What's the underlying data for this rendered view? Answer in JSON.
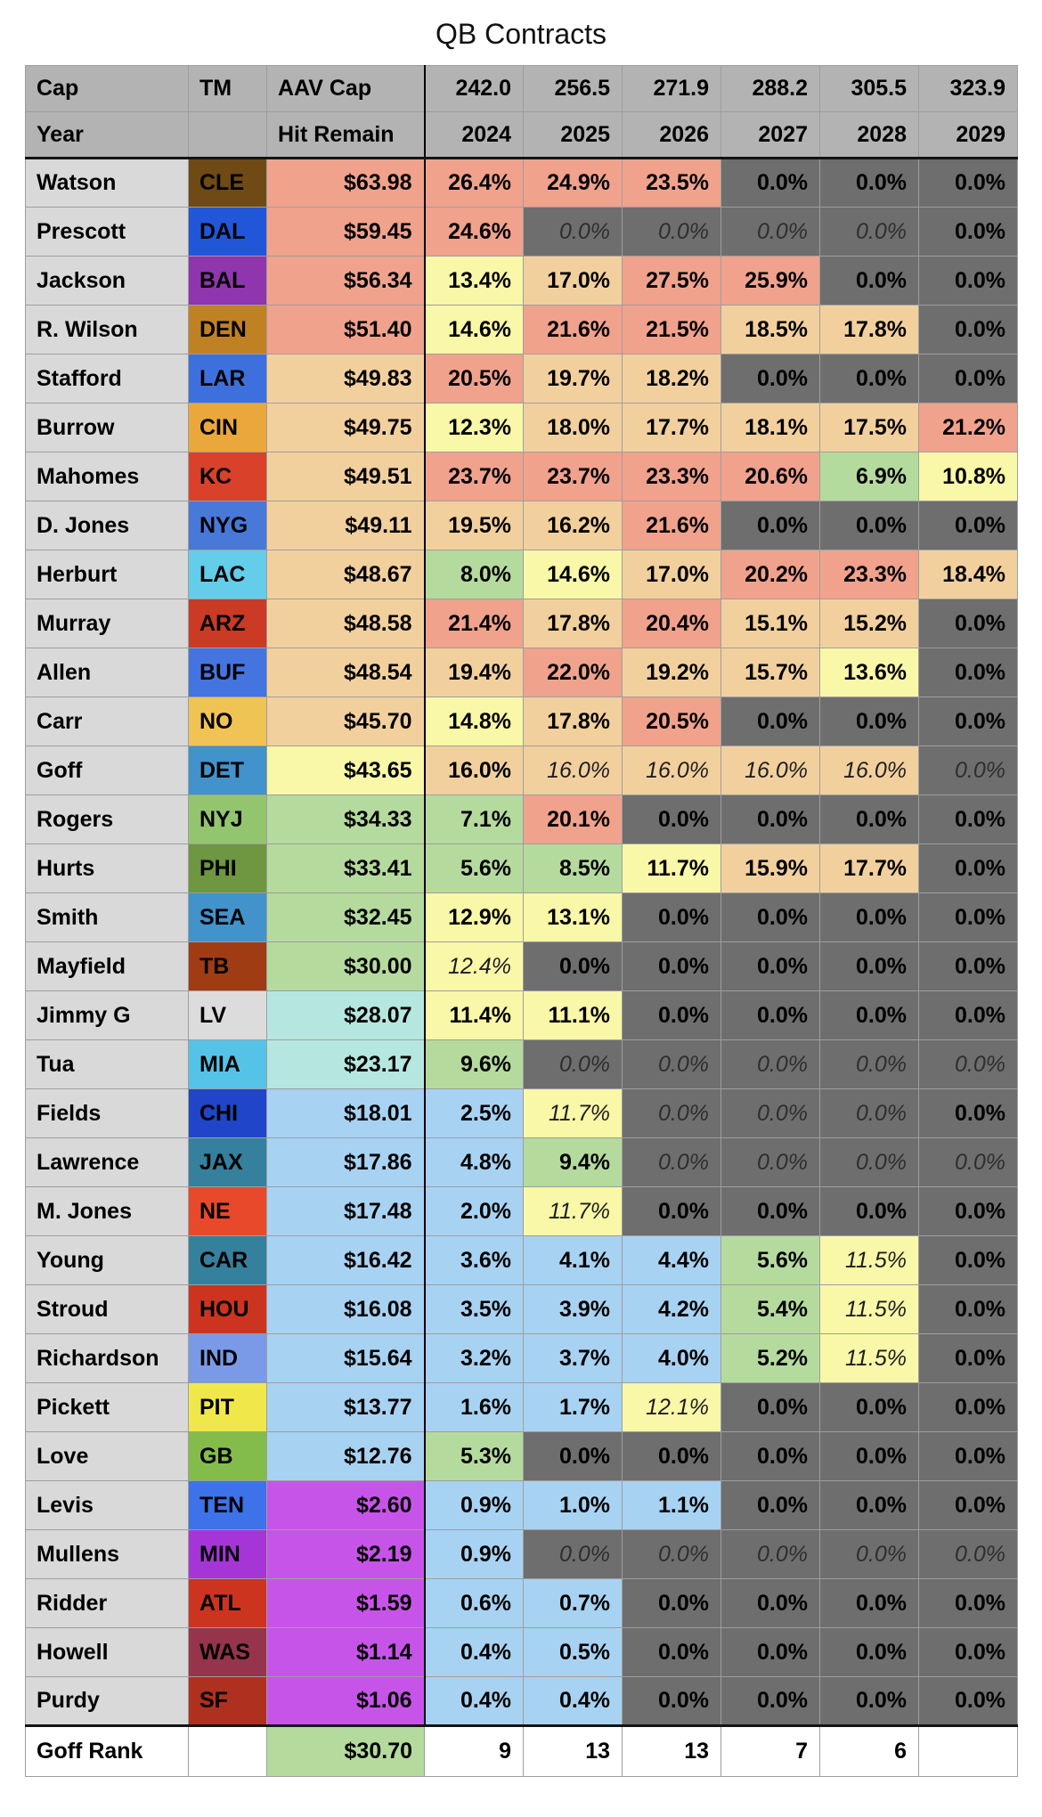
{
  "title": "QB Contracts",
  "chart_data": {
    "type": "table",
    "title": "QB Contracts",
    "header_rows": [
      [
        "Cap",
        "TM",
        "AAV Cap",
        "242.0",
        "256.5",
        "271.9",
        "288.2",
        "305.5",
        "323.9"
      ],
      [
        "Year",
        "",
        "Hit Remain",
        "2024",
        "2025",
        "2026",
        "2027",
        "2028",
        "2029"
      ]
    ],
    "years": [
      "2024",
      "2025",
      "2026",
      "2027",
      "2028",
      "2029"
    ],
    "rows": [
      {
        "name": "Watson",
        "team": "CLE",
        "aav": "$63.98",
        "aav_bg": "S",
        "pcts": [
          [
            "26.4%",
            "S"
          ],
          [
            "24.9%",
            "S"
          ],
          [
            "23.5%",
            "S"
          ],
          [
            "0.0%",
            "D"
          ],
          [
            "0.0%",
            "D"
          ],
          [
            "0.0%",
            "D"
          ]
        ]
      },
      {
        "name": "Prescott",
        "team": "DAL",
        "aav": "$59.45",
        "aav_bg": "S",
        "pcts": [
          [
            "24.6%",
            "S"
          ],
          [
            "0.0%",
            "D",
            "i"
          ],
          [
            "0.0%",
            "D",
            "i"
          ],
          [
            "0.0%",
            "D",
            "i"
          ],
          [
            "0.0%",
            "D",
            "i"
          ],
          [
            "0.0%",
            "D"
          ]
        ]
      },
      {
        "name": "Jackson",
        "team": "BAL",
        "aav": "$56.34",
        "aav_bg": "S",
        "pcts": [
          [
            "13.4%",
            "Y"
          ],
          [
            "17.0%",
            "T"
          ],
          [
            "27.5%",
            "S"
          ],
          [
            "25.9%",
            "S"
          ],
          [
            "0.0%",
            "D"
          ],
          [
            "0.0%",
            "D"
          ]
        ]
      },
      {
        "name": "R. Wilson",
        "team": "DEN",
        "aav": "$51.40",
        "aav_bg": "S",
        "pcts": [
          [
            "14.6%",
            "Y"
          ],
          [
            "21.6%",
            "S"
          ],
          [
            "21.5%",
            "S"
          ],
          [
            "18.5%",
            "T"
          ],
          [
            "17.8%",
            "T"
          ],
          [
            "0.0%",
            "D"
          ]
        ]
      },
      {
        "name": "Stafford",
        "team": "LAR",
        "aav": "$49.83",
        "aav_bg": "T",
        "pcts": [
          [
            "20.5%",
            "S"
          ],
          [
            "19.7%",
            "T"
          ],
          [
            "18.2%",
            "T"
          ],
          [
            "0.0%",
            "D"
          ],
          [
            "0.0%",
            "D"
          ],
          [
            "0.0%",
            "D"
          ]
        ]
      },
      {
        "name": "Burrow",
        "team": "CIN",
        "aav": "$49.75",
        "aav_bg": "T",
        "pcts": [
          [
            "12.3%",
            "Y"
          ],
          [
            "18.0%",
            "T"
          ],
          [
            "17.7%",
            "T"
          ],
          [
            "18.1%",
            "T"
          ],
          [
            "17.5%",
            "T"
          ],
          [
            "21.2%",
            "S"
          ]
        ]
      },
      {
        "name": "Mahomes",
        "team": "KC",
        "aav": "$49.51",
        "aav_bg": "T",
        "pcts": [
          [
            "23.7%",
            "S"
          ],
          [
            "23.7%",
            "S"
          ],
          [
            "23.3%",
            "S"
          ],
          [
            "20.6%",
            "S"
          ],
          [
            "6.9%",
            "G"
          ],
          [
            "10.8%",
            "Y"
          ]
        ]
      },
      {
        "name": "D. Jones",
        "team": "NYG",
        "aav": "$49.11",
        "aav_bg": "T",
        "pcts": [
          [
            "19.5%",
            "T"
          ],
          [
            "16.2%",
            "T"
          ],
          [
            "21.6%",
            "S"
          ],
          [
            "0.0%",
            "D"
          ],
          [
            "0.0%",
            "D"
          ],
          [
            "0.0%",
            "D"
          ]
        ]
      },
      {
        "name": "Herburt",
        "team": "LAC",
        "aav": "$48.67",
        "aav_bg": "T",
        "pcts": [
          [
            "8.0%",
            "G"
          ],
          [
            "14.6%",
            "Y"
          ],
          [
            "17.0%",
            "T"
          ],
          [
            "20.2%",
            "S"
          ],
          [
            "23.3%",
            "S"
          ],
          [
            "18.4%",
            "T"
          ]
        ]
      },
      {
        "name": "Murray",
        "team": "ARZ",
        "aav": "$48.58",
        "aav_bg": "T",
        "pcts": [
          [
            "21.4%",
            "S"
          ],
          [
            "17.8%",
            "T"
          ],
          [
            "20.4%",
            "S"
          ],
          [
            "15.1%",
            "T"
          ],
          [
            "15.2%",
            "T"
          ],
          [
            "0.0%",
            "D"
          ]
        ]
      },
      {
        "name": "Allen",
        "team": "BUF",
        "aav": "$48.54",
        "aav_bg": "T",
        "pcts": [
          [
            "19.4%",
            "T"
          ],
          [
            "22.0%",
            "S"
          ],
          [
            "19.2%",
            "T"
          ],
          [
            "15.7%",
            "T"
          ],
          [
            "13.6%",
            "Y"
          ],
          [
            "0.0%",
            "D"
          ]
        ]
      },
      {
        "name": "Carr",
        "team": "NO",
        "aav": "$45.70",
        "aav_bg": "T",
        "pcts": [
          [
            "14.8%",
            "Y"
          ],
          [
            "17.8%",
            "T"
          ],
          [
            "20.5%",
            "S"
          ],
          [
            "0.0%",
            "D"
          ],
          [
            "0.0%",
            "D"
          ],
          [
            "0.0%",
            "D"
          ]
        ]
      },
      {
        "name": "Goff",
        "team": "DET",
        "aav": "$43.65",
        "aav_bg": "Y",
        "pcts": [
          [
            "16.0%",
            "T"
          ],
          [
            "16.0%",
            "T",
            "i"
          ],
          [
            "16.0%",
            "T",
            "i"
          ],
          [
            "16.0%",
            "T",
            "i"
          ],
          [
            "16.0%",
            "T",
            "i"
          ],
          [
            "0.0%",
            "D",
            "i"
          ]
        ]
      },
      {
        "name": "Rogers",
        "team": "NYJ",
        "aav": "$34.33",
        "aav_bg": "G",
        "pcts": [
          [
            "7.1%",
            "G"
          ],
          [
            "20.1%",
            "S"
          ],
          [
            "0.0%",
            "D"
          ],
          [
            "0.0%",
            "D"
          ],
          [
            "0.0%",
            "D"
          ],
          [
            "0.0%",
            "D"
          ]
        ]
      },
      {
        "name": "Hurts",
        "team": "PHI",
        "aav": "$33.41",
        "aav_bg": "G",
        "pcts": [
          [
            "5.6%",
            "G"
          ],
          [
            "8.5%",
            "G"
          ],
          [
            "11.7%",
            "Y"
          ],
          [
            "15.9%",
            "T"
          ],
          [
            "17.7%",
            "T"
          ],
          [
            "0.0%",
            "D"
          ]
        ]
      },
      {
        "name": "Smith",
        "team": "SEA",
        "aav": "$32.45",
        "aav_bg": "G",
        "pcts": [
          [
            "12.9%",
            "Y"
          ],
          [
            "13.1%",
            "Y"
          ],
          [
            "0.0%",
            "D"
          ],
          [
            "0.0%",
            "D"
          ],
          [
            "0.0%",
            "D"
          ],
          [
            "0.0%",
            "D"
          ]
        ]
      },
      {
        "name": "Mayfield",
        "team": "TB",
        "aav": "$30.00",
        "aav_bg": "G",
        "pcts": [
          [
            "12.4%",
            "Y",
            "i"
          ],
          [
            "0.0%",
            "D"
          ],
          [
            "0.0%",
            "D"
          ],
          [
            "0.0%",
            "D"
          ],
          [
            "0.0%",
            "D"
          ],
          [
            "0.0%",
            "D"
          ]
        ]
      },
      {
        "name": "Jimmy G",
        "team": "LV",
        "aav": "$28.07",
        "aav_bg": "C",
        "pcts": [
          [
            "11.4%",
            "Y"
          ],
          [
            "11.1%",
            "Y"
          ],
          [
            "0.0%",
            "D"
          ],
          [
            "0.0%",
            "D"
          ],
          [
            "0.0%",
            "D"
          ],
          [
            "0.0%",
            "D"
          ]
        ]
      },
      {
        "name": "Tua",
        "team": "MIA",
        "aav": "$23.17",
        "aav_bg": "C",
        "pcts": [
          [
            "9.6%",
            "G"
          ],
          [
            "0.0%",
            "D",
            "i"
          ],
          [
            "0.0%",
            "D",
            "i"
          ],
          [
            "0.0%",
            "D",
            "i"
          ],
          [
            "0.0%",
            "D",
            "i"
          ],
          [
            "0.0%",
            "D",
            "i"
          ]
        ]
      },
      {
        "name": "Fields",
        "team": "CHI",
        "aav": "$18.01",
        "aav_bg": "B",
        "pcts": [
          [
            "2.5%",
            "B"
          ],
          [
            "11.7%",
            "Y",
            "i"
          ],
          [
            "0.0%",
            "D",
            "i"
          ],
          [
            "0.0%",
            "D",
            "i"
          ],
          [
            "0.0%",
            "D",
            "i"
          ],
          [
            "0.0%",
            "D"
          ]
        ]
      },
      {
        "name": "Lawrence",
        "team": "JAX",
        "aav": "$17.86",
        "aav_bg": "B",
        "pcts": [
          [
            "4.8%",
            "B"
          ],
          [
            "9.4%",
            "G"
          ],
          [
            "0.0%",
            "D",
            "i"
          ],
          [
            "0.0%",
            "D",
            "i"
          ],
          [
            "0.0%",
            "D",
            "i"
          ],
          [
            "0.0%",
            "D",
            "i"
          ]
        ]
      },
      {
        "name": "M. Jones",
        "team": "NE",
        "aav": "$17.48",
        "aav_bg": "B",
        "pcts": [
          [
            "2.0%",
            "B"
          ],
          [
            "11.7%",
            "Y",
            "i"
          ],
          [
            "0.0%",
            "D"
          ],
          [
            "0.0%",
            "D"
          ],
          [
            "0.0%",
            "D"
          ],
          [
            "0.0%",
            "D"
          ]
        ]
      },
      {
        "name": "Young",
        "team": "CAR",
        "aav": "$16.42",
        "aav_bg": "B",
        "pcts": [
          [
            "3.6%",
            "B"
          ],
          [
            "4.1%",
            "B"
          ],
          [
            "4.4%",
            "B"
          ],
          [
            "5.6%",
            "G"
          ],
          [
            "11.5%",
            "Y",
            "i"
          ],
          [
            "0.0%",
            "D"
          ]
        ]
      },
      {
        "name": "Stroud",
        "team": "HOU",
        "aav": "$16.08",
        "aav_bg": "B",
        "pcts": [
          [
            "3.5%",
            "B"
          ],
          [
            "3.9%",
            "B"
          ],
          [
            "4.2%",
            "B"
          ],
          [
            "5.4%",
            "G"
          ],
          [
            "11.5%",
            "Y",
            "i"
          ],
          [
            "0.0%",
            "D"
          ]
        ]
      },
      {
        "name": "Richardson",
        "team": "IND",
        "aav": "$15.64",
        "aav_bg": "B",
        "pcts": [
          [
            "3.2%",
            "B"
          ],
          [
            "3.7%",
            "B"
          ],
          [
            "4.0%",
            "B"
          ],
          [
            "5.2%",
            "G"
          ],
          [
            "11.5%",
            "Y",
            "i"
          ],
          [
            "0.0%",
            "D"
          ]
        ]
      },
      {
        "name": "Pickett",
        "team": "PIT",
        "aav": "$13.77",
        "aav_bg": "B",
        "pcts": [
          [
            "1.6%",
            "B"
          ],
          [
            "1.7%",
            "B"
          ],
          [
            "12.1%",
            "Y",
            "i"
          ],
          [
            "0.0%",
            "D"
          ],
          [
            "0.0%",
            "D"
          ],
          [
            "0.0%",
            "D"
          ]
        ]
      },
      {
        "name": "Love",
        "team": "GB",
        "aav": "$12.76",
        "aav_bg": "B",
        "pcts": [
          [
            "5.3%",
            "G"
          ],
          [
            "0.0%",
            "D"
          ],
          [
            "0.0%",
            "D"
          ],
          [
            "0.0%",
            "D"
          ],
          [
            "0.0%",
            "D"
          ],
          [
            "0.0%",
            "D"
          ]
        ]
      },
      {
        "name": "Levis",
        "team": "TEN",
        "aav": "$2.60",
        "aav_bg": "M",
        "pcts": [
          [
            "0.9%",
            "B"
          ],
          [
            "1.0%",
            "B"
          ],
          [
            "1.1%",
            "B"
          ],
          [
            "0.0%",
            "D"
          ],
          [
            "0.0%",
            "D"
          ],
          [
            "0.0%",
            "D"
          ]
        ]
      },
      {
        "name": "Mullens",
        "team": "MIN",
        "aav": "$2.19",
        "aav_bg": "M",
        "pcts": [
          [
            "0.9%",
            "B"
          ],
          [
            "0.0%",
            "D",
            "i"
          ],
          [
            "0.0%",
            "D",
            "i"
          ],
          [
            "0.0%",
            "D",
            "i"
          ],
          [
            "0.0%",
            "D",
            "i"
          ],
          [
            "0.0%",
            "D",
            "i"
          ]
        ]
      },
      {
        "name": "Ridder",
        "team": "ATL",
        "aav": "$1.59",
        "aav_bg": "M",
        "pcts": [
          [
            "0.6%",
            "B"
          ],
          [
            "0.7%",
            "B"
          ],
          [
            "0.0%",
            "D"
          ],
          [
            "0.0%",
            "D"
          ],
          [
            "0.0%",
            "D"
          ],
          [
            "0.0%",
            "D"
          ]
        ]
      },
      {
        "name": "Howell",
        "team": "WAS",
        "aav": "$1.14",
        "aav_bg": "M",
        "pcts": [
          [
            "0.4%",
            "B"
          ],
          [
            "0.5%",
            "B"
          ],
          [
            "0.0%",
            "D"
          ],
          [
            "0.0%",
            "D"
          ],
          [
            "0.0%",
            "D"
          ],
          [
            "0.0%",
            "D"
          ]
        ]
      },
      {
        "name": "Purdy",
        "team": "SF",
        "aav": "$1.06",
        "aav_bg": "M",
        "pcts": [
          [
            "0.4%",
            "B"
          ],
          [
            "0.4%",
            "B"
          ],
          [
            "0.0%",
            "D"
          ],
          [
            "0.0%",
            "D"
          ],
          [
            "0.0%",
            "D"
          ],
          [
            "0.0%",
            "D"
          ]
        ]
      }
    ],
    "footer": {
      "label": "Goff Rank",
      "team": "",
      "aav": "$30.70",
      "aav_bg": "G",
      "ranks": [
        "9",
        "13",
        "13",
        "7",
        "6",
        ""
      ]
    }
  },
  "colors": {
    "cell_bg": {
      "S": "#f0a28d",
      "T": "#f2d09e",
      "Y": "#f9f7a8",
      "G": "#b5da9e",
      "B": "#a8d2f2",
      "C": "#b5e7e0",
      "M": "#c754e8",
      "D": "#6e6e6e",
      "W": "#ffffff"
    },
    "header_bg": "#b3b3b3",
    "name_bg": "#d9d9d9",
    "grid": "#9e9e9e",
    "teams": {
      "CLE": "#6f4a15",
      "DAL": "#2256d9",
      "BAL": "#8f35ad",
      "DEN": "#c08125",
      "LAR": "#3e70dd",
      "CIN": "#eaa73c",
      "KC": "#d9412a",
      "NYG": "#4878d8",
      "LAC": "#63cdea",
      "ARZ": "#cb3a25",
      "BUF": "#4374e0",
      "NO": "#f0c355",
      "DET": "#4292cb",
      "NYJ": "#93c56e",
      "PHI": "#6f9640",
      "SEA": "#4292cb",
      "TB": "#a03c14",
      "LV": "#dcdcdc",
      "MIA": "#55c3e8",
      "CHI": "#2145c8",
      "JAX": "#35809c",
      "NE": "#e8492b",
      "CAR": "#35809c",
      "HOU": "#cc3420",
      "IND": "#7a9ae8",
      "PIT": "#f0e84a",
      "GB": "#84bc4c",
      "TEN": "#3d72e8",
      "MIN": "#a635d8",
      "ATL": "#cc3420",
      "WAS": "#96344c",
      "SF": "#b03020"
    }
  }
}
